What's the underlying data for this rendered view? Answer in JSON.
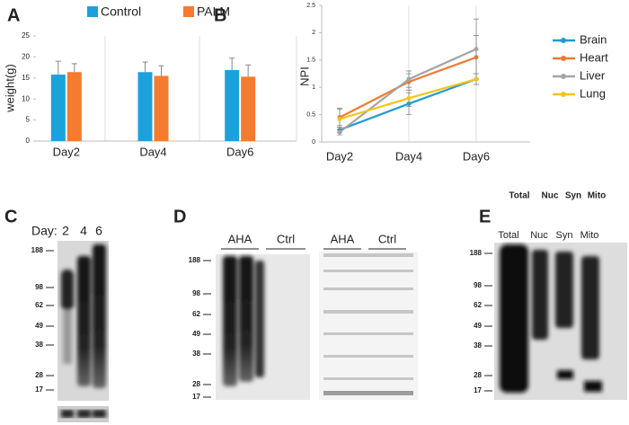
{
  "chart_data": [
    {
      "type": "bar",
      "ylabel": "weight(g)",
      "categories": [
        "Day2",
        "Day4",
        "Day6"
      ],
      "series": [
        {
          "name": "Control",
          "color": "#1ba1dc",
          "values": [
            15.8,
            16.4,
            16.9
          ],
          "errors": [
            3.2,
            2.4,
            2.8
          ]
        },
        {
          "name": "PALM",
          "color": "#f47b30",
          "values": [
            16.4,
            15.5,
            15.3
          ],
          "errors": [
            2.0,
            2.4,
            2.8
          ]
        }
      ],
      "ylim": [
        0,
        25
      ],
      "yticks": [
        0,
        5,
        10,
        15,
        20,
        25
      ],
      "legend": "top"
    },
    {
      "type": "line",
      "ylabel": "NPI",
      "categories": [
        "Day2",
        "Day4",
        "Day6"
      ],
      "series": [
        {
          "name": "Brain",
          "color": "#1f9ad6",
          "values": [
            0.22,
            0.7,
            1.15
          ],
          "errors": [
            0.05,
            0.2,
            0.1
          ]
        },
        {
          "name": "Heart",
          "color": "#f07a30",
          "values": [
            0.45,
            1.1,
            1.55
          ],
          "errors": [
            0.15,
            0.15,
            0.4
          ]
        },
        {
          "name": "Liver",
          "color": "#a5a5a5",
          "values": [
            0.18,
            1.15,
            1.7
          ],
          "errors": [
            0.05,
            0.15,
            0.55
          ]
        },
        {
          "name": "Lung",
          "color": "#f5c518",
          "values": [
            0.42,
            0.8,
            1.15
          ],
          "errors": [
            0.2,
            0.15,
            0.1
          ]
        }
      ],
      "ylim": [
        0,
        2.5
      ],
      "yticks": [
        0,
        0.5,
        1,
        1.5,
        2,
        2.5
      ],
      "legend": "right"
    }
  ],
  "panel_labels": [
    "A",
    "B",
    "C",
    "D",
    "E"
  ],
  "blot_c": {
    "label": "Day:",
    "lanes": [
      "2",
      "4",
      "6"
    ],
    "markers": [
      188,
      98,
      62,
      49,
      38,
      28,
      17
    ]
  },
  "blot_d": {
    "groups": [
      "AHA",
      "Ctrl",
      "AHA",
      "Ctrl"
    ],
    "markers": [
      188,
      98,
      62,
      49,
      38,
      28,
      17
    ]
  },
  "blot_e": {
    "header": [
      "Total",
      "Nuc",
      "Syn",
      "Mito"
    ],
    "lanes": [
      "Total",
      "Nuc",
      "Syn",
      "Mito"
    ],
    "markers": [
      188,
      98,
      62,
      49,
      38,
      28,
      17
    ]
  }
}
